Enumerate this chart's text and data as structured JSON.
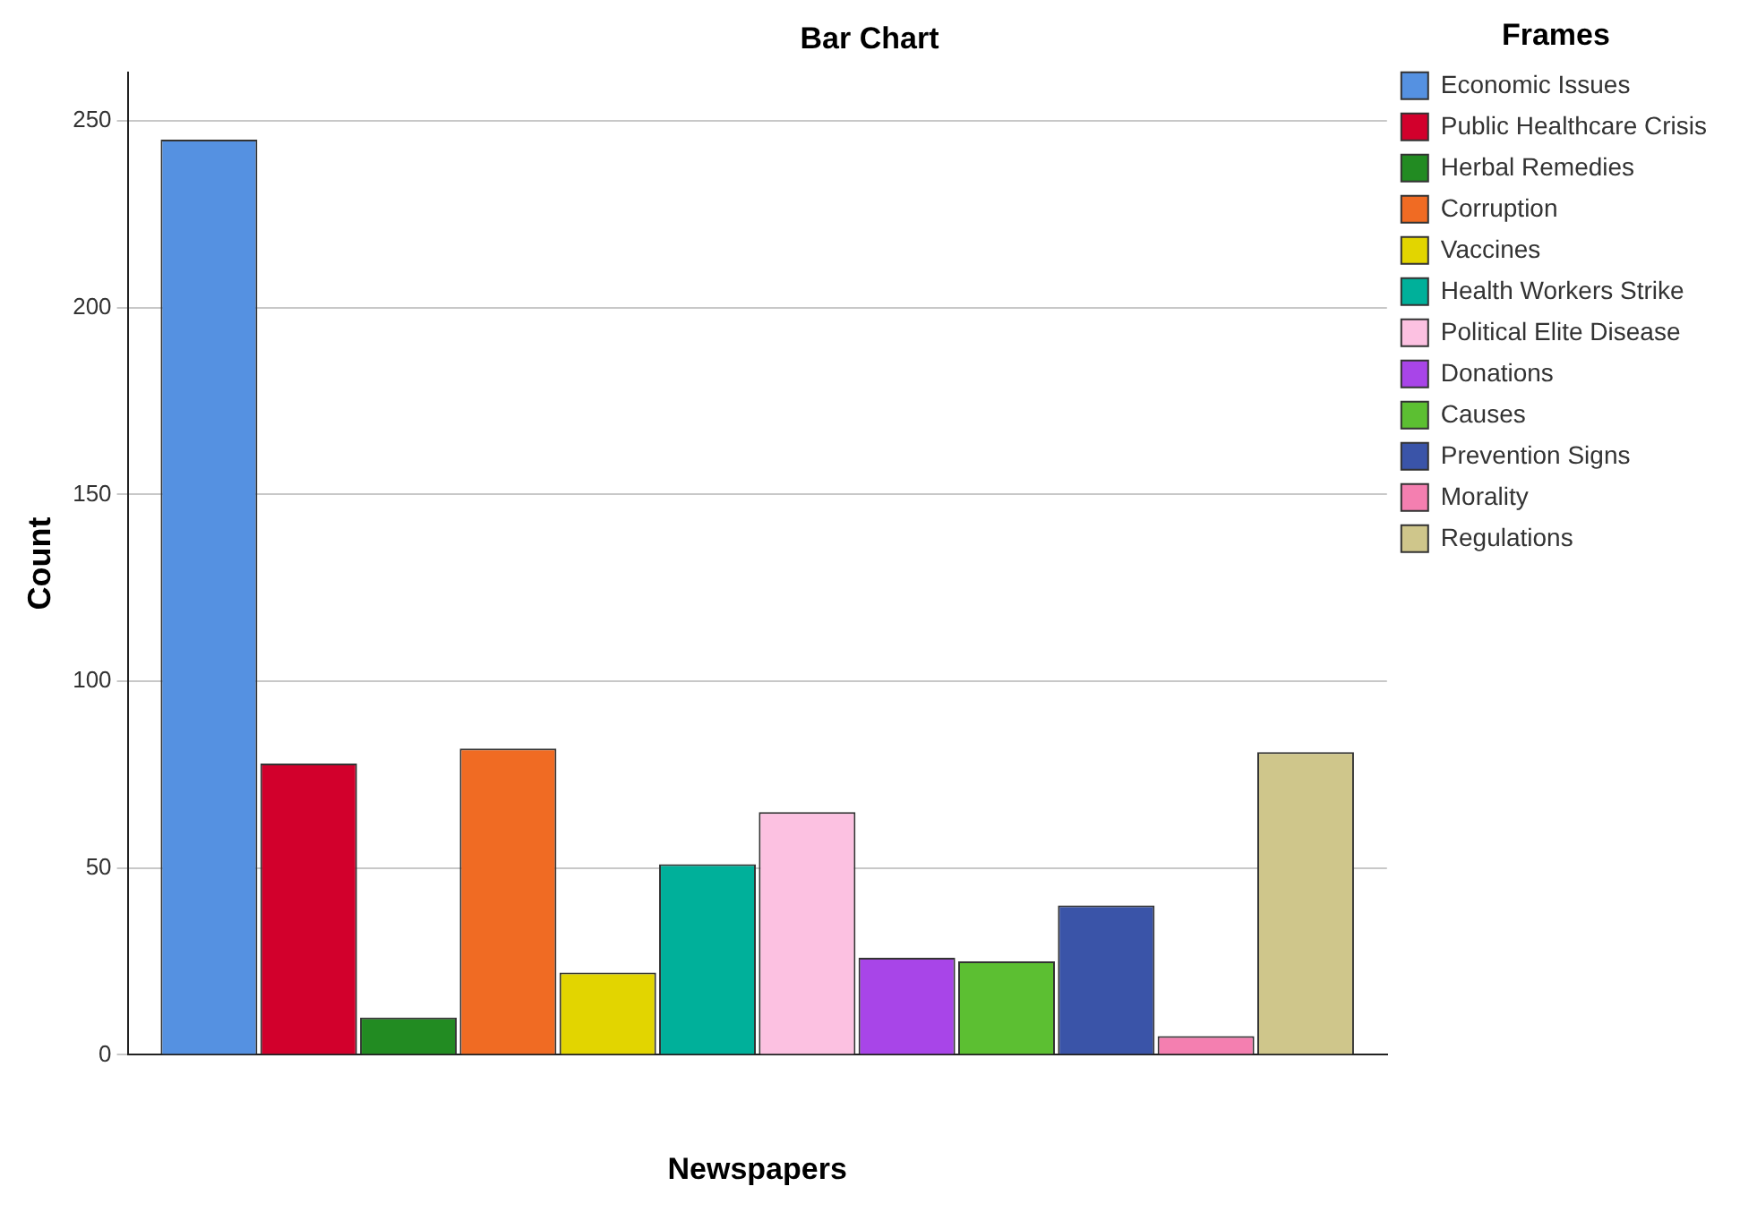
{
  "chart_data": {
    "type": "bar",
    "title": "Bar Chart",
    "xlabel": "Newspapers",
    "ylabel": "Count",
    "legend_title": "Frames",
    "legend": "right",
    "grid": "y",
    "categories": [
      null
    ],
    "ylim": [
      0,
      263
    ],
    "yticks": [
      0,
      50,
      100,
      150,
      200,
      250
    ],
    "series": [
      {
        "name": "Economic Issues",
        "color": "#5591e1",
        "values": [
          245
        ]
      },
      {
        "name": "Public Healthcare Crisis",
        "color": "#d2002c",
        "values": [
          78
        ]
      },
      {
        "name": "Herbal Remedies",
        "color": "#228b22",
        "values": [
          10
        ]
      },
      {
        "name": "Corruption",
        "color": "#f06b23",
        "values": [
          82
        ]
      },
      {
        "name": "Vaccines",
        "color": "#e2d500",
        "values": [
          22
        ]
      },
      {
        "name": "Health Workers Strike",
        "color": "#00b09a",
        "values": [
          51
        ]
      },
      {
        "name": "Political Elite Disease",
        "color": "#fcc1e1",
        "values": [
          65
        ]
      },
      {
        "name": "Donations",
        "color": "#a845e8",
        "values": [
          26
        ]
      },
      {
        "name": "Causes",
        "color": "#5cbf32",
        "values": [
          25
        ]
      },
      {
        "name": "Prevention Signs",
        "color": "#3a54a8",
        "values": [
          40
        ]
      },
      {
        "name": "Morality",
        "color": "#f47fb0",
        "values": [
          5
        ]
      },
      {
        "name": "Regulations",
        "color": "#cfc68b",
        "values": [
          81
        ]
      }
    ]
  }
}
